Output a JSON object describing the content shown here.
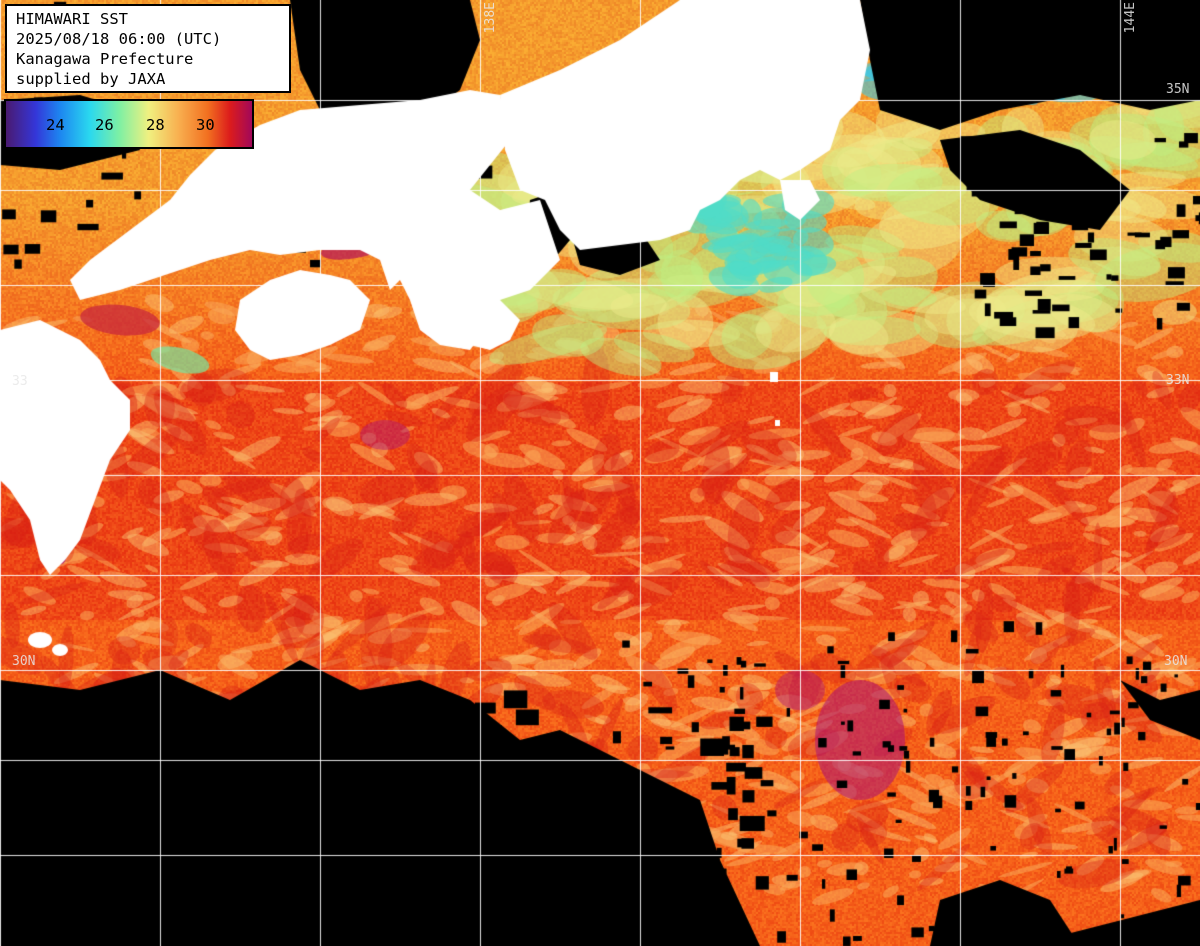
{
  "info": {
    "line1": "HIMAWARI SST",
    "line2": "2025/08/18 06:00 (UTC)",
    "line3": "Kanagawa Prefecture",
    "line4": "supplied by JAXA"
  },
  "colorbar": {
    "labels": [
      "24",
      "26",
      "28",
      "30"
    ],
    "colors": [
      "#4a1a70",
      "#3436d8",
      "#1d86f0",
      "#2ad8ef",
      "#7df0a4",
      "#f0f080",
      "#f8b050",
      "#f27020",
      "#dc1c1c",
      "#a2085a"
    ]
  },
  "grid": {
    "lat_labels": {
      "l35_right": "35N",
      "l33_left": "33",
      "l33_right": "33N",
      "l30_left": "30N",
      "l30_right": "30N"
    },
    "lon_labels": {
      "top_mid": "138E",
      "top_right": "144E"
    }
  },
  "colors": {
    "land": "#ffffff",
    "cloud": "#000000",
    "grid": "#ffffff"
  }
}
